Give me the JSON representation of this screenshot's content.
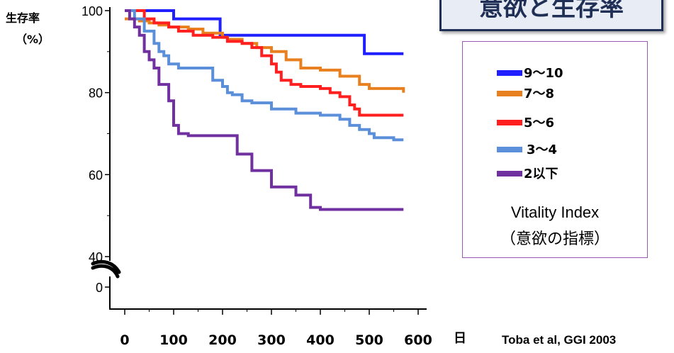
{
  "title": "意欲と生存率",
  "ylabel_line1": "生存率",
  "ylabel_line2": "（%）",
  "xlabel": "日",
  "citation": "Toba et al, GGI 2003",
  "legend_title_line1": "Vitality Index",
  "legend_title_line2": "（意欲の指標）",
  "chart_data": {
    "type": "line",
    "title": "意欲と生存率",
    "xlabel": "日",
    "ylabel": "生存率（%）",
    "xlim": [
      0,
      600
    ],
    "ylim": [
      40,
      100
    ],
    "axis_break": true,
    "x_ticks": [
      "0",
      "100",
      "200",
      "300",
      "400",
      "500",
      "600"
    ],
    "y_ticks": [
      "100",
      "80",
      "60",
      "40",
      "0"
    ],
    "grid": false,
    "legend_position": "right",
    "series": [
      {
        "name": "9〜10",
        "color": "#1f1fff",
        "x": [
          0,
          85,
          100,
          195,
          460,
          490,
          570
        ],
        "y": [
          100,
          100,
          98,
          94,
          94,
          89.5,
          89.5
        ]
      },
      {
        "name": "7〜8",
        "color": "#e8801f",
        "x": [
          0,
          30,
          50,
          70,
          90,
          130,
          160,
          200,
          210,
          240,
          270,
          300,
          330,
          360,
          400,
          440,
          480,
          500,
          570
        ],
        "y": [
          98,
          97.5,
          97,
          96.5,
          96,
          95.5,
          94.5,
          93.5,
          93,
          92,
          91,
          90,
          88,
          86,
          85.5,
          84,
          82,
          81,
          80
        ]
      },
      {
        "name": "5〜6",
        "color": "#ff1f1f",
        "x": [
          0,
          40,
          60,
          90,
          110,
          140,
          180,
          210,
          240,
          260,
          280,
          300,
          310,
          320,
          340,
          360,
          400,
          420,
          440,
          460,
          470,
          480,
          570
        ],
        "y": [
          100,
          98,
          97,
          96,
          95,
          94,
          93.5,
          92.5,
          92,
          91,
          89,
          87,
          85,
          83,
          82,
          81.5,
          81,
          80,
          79,
          77,
          76,
          74.5,
          74.5
        ]
      },
      {
        "name": "3〜4",
        "color": "#5b8fd9",
        "x": [
          0,
          20,
          40,
          60,
          70,
          80,
          90,
          110,
          170,
          180,
          200,
          210,
          220,
          240,
          260,
          300,
          350,
          400,
          440,
          460,
          480,
          500,
          510,
          550,
          570
        ],
        "y": [
          100,
          98,
          95,
          92,
          90,
          89,
          87,
          86,
          86,
          83,
          81.5,
          80,
          79.5,
          78,
          77.5,
          76,
          75,
          74.5,
          73.5,
          72,
          71,
          70,
          69,
          68.5,
          68.5
        ]
      },
      {
        "name": "2以下",
        "color": "#7030a0",
        "x": [
          0,
          10,
          20,
          30,
          40,
          50,
          60,
          70,
          90,
          100,
          110,
          130,
          200,
          230,
          260,
          300,
          350,
          380,
          400,
          570
        ],
        "y": [
          100,
          98,
          96,
          94,
          90,
          88,
          86,
          82,
          78,
          72,
          70,
          69.5,
          69.5,
          65,
          61,
          57,
          55,
          52,
          51.5,
          51.5
        ]
      }
    ]
  }
}
